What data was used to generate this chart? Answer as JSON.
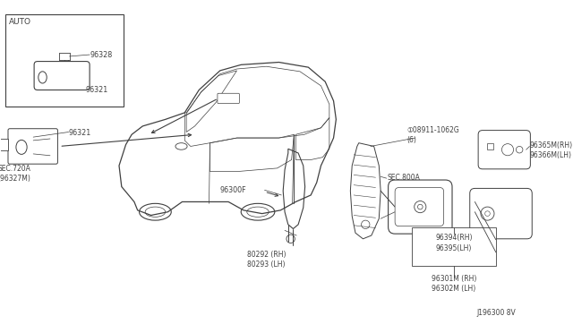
{
  "bg_color": "#ffffff",
  "line_color": "#404040",
  "diagram_id": "J196300 8V",
  "labels": {
    "auto_box": "AUTO",
    "part_96328": "96328",
    "part_96321_inset": "96321",
    "part_96321_left": "96321",
    "sec720a": "SEC.720A\n(96327M)",
    "part_96300f": "96300F",
    "part_80292": "80292 (RH)\n80293 (LH)",
    "bolt_label": "①08911-1062G\n(6)",
    "sec800a": "SEC.800A",
    "part_96365m": "96365M(RH)\n96366M(LH)",
    "part_96394": "96394(RH)\n96395(LH)",
    "part_96301m": "96301M (RH)\n96302M (LH)"
  }
}
